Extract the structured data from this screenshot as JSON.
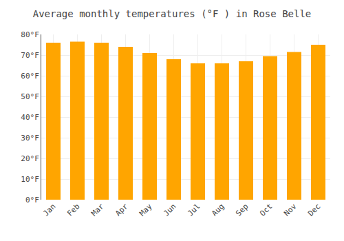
{
  "chart_data": {
    "type": "bar",
    "title": "Average monthly temperatures (°F ) in Rose Belle",
    "categories": [
      "Jan",
      "Feb",
      "Mar",
      "Apr",
      "May",
      "Jun",
      "Jul",
      "Aug",
      "Sep",
      "Oct",
      "Nov",
      "Dec"
    ],
    "values": [
      76,
      76.5,
      76,
      74,
      71,
      68,
      66,
      66,
      67,
      69.5,
      71.5,
      75
    ],
    "color": "#FFA500",
    "ylim": [
      0,
      80
    ],
    "yticks": [
      {
        "value": 0,
        "label": "0°F"
      },
      {
        "value": 10,
        "label": "10°F"
      },
      {
        "value": 20,
        "label": "20°F"
      },
      {
        "value": 30,
        "label": "30°F"
      },
      {
        "value": 40,
        "label": "40°F"
      },
      {
        "value": 50,
        "label": "50°F"
      },
      {
        "value": 60,
        "label": "60°F"
      },
      {
        "value": 70,
        "label": "70°F"
      },
      {
        "value": 80,
        "label": "80°F"
      }
    ],
    "grid": true
  }
}
